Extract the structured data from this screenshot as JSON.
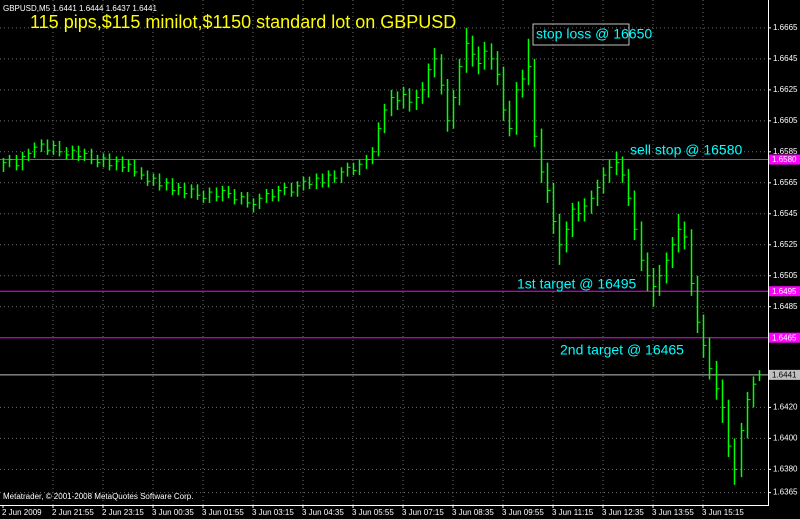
{
  "chart_data": {
    "type": "hlc",
    "symbol_info": "GBPUSD,M5  1.6441 1.6444 1.6437 1.6441",
    "title": "115 pips,$115 minilot,$1150 standard lot on GBPUSD",
    "footer": "Metatrader, © 2001-2008 MetaQuotes Software Corp.",
    "color": "#00ff00",
    "background": "#000000",
    "grid": true,
    "ylim": [
      1.6357,
      1.6683
    ],
    "yticks": [
      {
        "value": 1.6665,
        "label": "1.6665"
      },
      {
        "value": 1.6645,
        "label": "1.6645"
      },
      {
        "value": 1.6625,
        "label": "1.6625"
      },
      {
        "value": 1.6605,
        "label": "1.6605"
      },
      {
        "value": 1.6585,
        "label": "1.6585"
      },
      {
        "value": 1.6565,
        "label": "1.6565"
      },
      {
        "value": 1.6545,
        "label": "1.6545"
      },
      {
        "value": 1.6525,
        "label": "1.6525"
      },
      {
        "value": 1.6505,
        "label": "1.6505"
      },
      {
        "value": 1.6485,
        "label": "1.6485"
      },
      {
        "value": 1.642,
        "label": "1.6420"
      },
      {
        "value": 1.64,
        "label": "1.6400"
      },
      {
        "value": 1.638,
        "label": "1.6380"
      },
      {
        "value": 1.6365,
        "label": "1.6365"
      }
    ],
    "hlines": [
      {
        "value": 1.658,
        "label": "1.6580",
        "color": "#ff00ff"
      },
      {
        "value": 1.6495,
        "label": "1.6495",
        "color": "#ff00ff"
      },
      {
        "value": 1.6465,
        "label": "1.6465",
        "color": "#ff00ff"
      },
      {
        "value": 1.6441,
        "label": "1.6441",
        "color": "#c0c0c0"
      }
    ],
    "annotations": [
      "stop loss @ 16650",
      "sell stop @ 16580",
      "1st target @ 16495",
      "2nd target @ 16465"
    ],
    "categories": [
      "2 Jun 2009",
      null,
      null,
      null,
      null,
      null,
      null,
      null,
      "2 Jun 21:55",
      null,
      null,
      null,
      null,
      null,
      null,
      null,
      "2 Jun 23:15",
      null,
      null,
      null,
      null,
      null,
      null,
      null,
      "3 Jun 00:35",
      null,
      null,
      null,
      null,
      null,
      null,
      null,
      "3 Jun 01:55",
      null,
      null,
      null,
      null,
      null,
      null,
      null,
      "3 Jun 03:15",
      null,
      null,
      null,
      null,
      null,
      null,
      null,
      "3 Jun 04:35",
      null,
      null,
      null,
      null,
      null,
      null,
      null,
      "3 Jun 05:55",
      null,
      null,
      null,
      null,
      null,
      null,
      null,
      "3 Jun 07:15",
      null,
      null,
      null,
      null,
      null,
      null,
      null,
      "3 Jun 08:35",
      null,
      null,
      null,
      null,
      null,
      null,
      null,
      "3 Jun 09:55",
      null,
      null,
      null,
      null,
      null,
      null,
      null,
      "3 Jun 11:15",
      null,
      null,
      null,
      null,
      null,
      null,
      null,
      "3 Jun 12:35",
      null,
      null,
      null,
      null,
      null,
      null,
      null,
      "3 Jun 13:55",
      null,
      null,
      null,
      null,
      null,
      null,
      null,
      "3 Jun 15:15",
      null,
      null,
      null,
      null,
      null,
      null,
      null,
      null,
      null
    ],
    "high": [
      1.6581,
      1.6583,
      1.6583,
      1.6585,
      1.6587,
      1.6591,
      1.6593,
      1.6593,
      1.6592,
      1.6592,
      1.6588,
      1.6589,
      1.6589,
      1.6587,
      1.6587,
      1.6583,
      1.6584,
      1.6584,
      1.6582,
      1.6582,
      1.658,
      1.658,
      1.6575,
      1.6573,
      1.6571,
      1.6571,
      1.6568,
      1.6568,
      1.6565,
      1.6565,
      1.6564,
      1.6564,
      1.656,
      1.6562,
      1.6562,
      1.6563,
      1.6563,
      1.6561,
      1.6559,
      1.6559,
      1.6555,
      1.6558,
      1.6561,
      1.6561,
      1.6563,
      1.6565,
      1.6565,
      1.6566,
      1.6569,
      1.6569,
      1.6571,
      1.6571,
      1.6573,
      1.6573,
      1.6575,
      1.6578,
      1.6578,
      1.658,
      1.6583,
      1.6588,
      1.6604,
      1.6616,
      1.6625,
      1.6624,
      1.6627,
      1.6626,
      1.6625,
      1.663,
      1.6642,
      1.6652,
      1.6648,
      1.6632,
      1.6625,
      1.6645,
      1.6665,
      1.666,
      1.6653,
      1.6656,
      1.6655,
      1.665,
      1.664,
      1.6618,
      1.663,
      1.6638,
      1.6658,
      1.6645,
      1.66,
      1.6578,
      1.6565,
      1.6545,
      1.654,
      1.6552,
      1.6553,
      1.6555,
      1.656,
      1.6567,
      1.6575,
      1.658,
      1.6585,
      1.6582,
      1.6574,
      1.656,
      1.654,
      1.652,
      1.651,
      1.6512,
      1.652,
      1.653,
      1.6545,
      1.654,
      1.6535,
      1.6505,
      1.648,
      1.6465,
      1.645,
      1.6438,
      1.6425,
      1.64,
      1.641,
      1.643,
      1.644,
      1.6444
    ],
    "low": [
      1.6572,
      1.6575,
      1.6573,
      1.6573,
      1.6579,
      1.6581,
      1.6585,
      1.6583,
      1.6583,
      1.6582,
      1.658,
      1.658,
      1.6579,
      1.6579,
      1.6577,
      1.6575,
      1.6575,
      1.6573,
      1.6573,
      1.6572,
      1.6572,
      1.6569,
      1.6567,
      1.6563,
      1.6563,
      1.656,
      1.656,
      1.6557,
      1.6557,
      1.6555,
      1.6555,
      1.6554,
      1.6552,
      1.6552,
      1.6553,
      1.6553,
      1.6555,
      1.6551,
      1.6551,
      1.6549,
      1.6546,
      1.6548,
      1.6552,
      1.6553,
      1.6553,
      1.6557,
      1.6556,
      1.6556,
      1.656,
      1.6561,
      1.6561,
      1.6562,
      1.6562,
      1.6565,
      1.6565,
      1.6569,
      1.657,
      1.657,
      1.6574,
      1.6577,
      1.6582,
      1.6597,
      1.6608,
      1.6612,
      1.6613,
      1.6611,
      1.6612,
      1.6616,
      1.662,
      1.6633,
      1.6622,
      1.6598,
      1.66,
      1.6615,
      1.6636,
      1.664,
      1.6635,
      1.6638,
      1.6638,
      1.6628,
      1.6605,
      1.6595,
      1.6596,
      1.662,
      1.6628,
      1.6588,
      1.6565,
      1.6552,
      1.6532,
      1.6512,
      1.652,
      1.653,
      1.654,
      1.654,
      1.6545,
      1.655,
      1.6558,
      1.6565,
      1.657,
      1.6565,
      1.655,
      1.6528,
      1.6508,
      1.6495,
      1.6485,
      1.6492,
      1.65,
      1.651,
      1.652,
      1.6522,
      1.6492,
      1.6468,
      1.6452,
      1.6438,
      1.6425,
      1.641,
      1.6388,
      1.637,
      1.6375,
      1.64,
      1.642,
      1.6437
    ],
    "close": [
      1.6578,
      1.658,
      1.6576,
      1.6582,
      1.6584,
      1.6588,
      1.659,
      1.6586,
      1.6589,
      1.6585,
      1.6583,
      1.6586,
      1.6582,
      1.6584,
      1.658,
      1.6578,
      1.6581,
      1.6576,
      1.6579,
      1.6575,
      1.6577,
      1.6572,
      1.657,
      1.6566,
      1.6568,
      1.6563,
      1.6565,
      1.656,
      1.6562,
      1.6558,
      1.6561,
      1.6557,
      1.6555,
      1.6559,
      1.6556,
      1.656,
      1.6558,
      1.6554,
      1.6556,
      1.6552,
      1.6551,
      1.6555,
      1.6558,
      1.6556,
      1.656,
      1.6562,
      1.6559,
      1.6563,
      1.6566,
      1.6564,
      1.6568,
      1.6565,
      1.657,
      1.6568,
      1.6572,
      1.6575,
      1.6573,
      1.6577,
      1.658,
      1.6585,
      1.66,
      1.6612,
      1.662,
      1.6618,
      1.6622,
      1.6617,
      1.662,
      1.6625,
      1.6638,
      1.6645,
      1.6628,
      1.6605,
      1.662,
      1.664,
      1.6655,
      1.6648,
      1.6642,
      1.665,
      1.6645,
      1.6635,
      1.6612,
      1.66,
      1.6625,
      1.6632,
      1.664,
      1.6595,
      1.6572,
      1.656,
      1.654,
      1.6525,
      1.6535,
      1.6548,
      1.6545,
      1.655,
      1.6555,
      1.6562,
      1.657,
      1.6575,
      1.6578,
      1.657,
      1.6555,
      1.6535,
      1.6515,
      1.6505,
      1.6498,
      1.6505,
      1.6515,
      1.6525,
      1.6535,
      1.653,
      1.65,
      1.6475,
      1.646,
      1.6445,
      1.6432,
      1.642,
      1.6395,
      1.638,
      1.6405,
      1.6425,
      1.6435,
      1.6441
    ]
  }
}
